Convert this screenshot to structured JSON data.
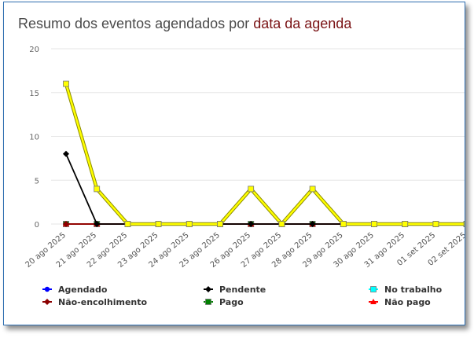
{
  "title_prefix": "Resumo dos eventos agendados por ",
  "title_highlight": "data da agenda",
  "chart_data": {
    "type": "line",
    "title": "Resumo dos eventos agendados por data da agenda",
    "categories": [
      "20 ago 2025",
      "21 ago 2025",
      "22 ago 2025",
      "23 ago 2025",
      "24 ago 2025",
      "25 ago 2025",
      "26 ago 2025",
      "27 ago 2025",
      "28 ago 2025",
      "29 ago 2025",
      "30 ago 2025",
      "31 ago 2025",
      "01 set 2025",
      "02 set 2025"
    ],
    "ylim": [
      0,
      20
    ],
    "yticks": [
      0,
      5,
      10,
      15,
      20
    ],
    "grid": true,
    "legend_position": "bottom",
    "series": [
      {
        "name": "Agendado",
        "color": "#0000ff",
        "marker": "circle",
        "values": [
          0,
          0,
          0,
          0,
          0,
          0,
          0,
          0,
          0,
          0,
          0,
          0,
          0,
          0
        ]
      },
      {
        "name": "Pendente",
        "color": "#000000",
        "marker": "diamond",
        "values": [
          8,
          0,
          0,
          0,
          0,
          0,
          0,
          0,
          0,
          0,
          0,
          0,
          0,
          0
        ]
      },
      {
        "name": "No trabalho",
        "color": "#00ffff",
        "marker": "square",
        "values": [
          0,
          0,
          0,
          0,
          0,
          0,
          0,
          0,
          0,
          0,
          0,
          0,
          0,
          0
        ]
      },
      {
        "name": "Não-encolhimento",
        "color": "#8b0000",
        "marker": "diamond",
        "values": [
          0,
          0,
          0,
          0,
          0,
          0,
          0,
          0,
          0,
          0,
          0,
          0,
          0,
          0
        ]
      },
      {
        "name": "Pago",
        "color": "#008000",
        "marker": "square",
        "values": [
          0,
          0,
          0,
          0,
          0,
          0,
          0,
          0,
          0,
          0,
          0,
          0,
          0,
          0
        ]
      },
      {
        "name": "Não pago",
        "color": "#ff0000",
        "marker": "triangle",
        "values": [
          0,
          0,
          0,
          0,
          0,
          0,
          0,
          0,
          0,
          0,
          0,
          0,
          0,
          0
        ]
      },
      {
        "name": "",
        "color": "#ffff00",
        "marker": "square",
        "values": [
          16,
          4,
          0,
          0,
          0,
          0,
          4,
          0,
          4,
          0,
          0,
          0,
          0,
          0
        ]
      }
    ]
  }
}
